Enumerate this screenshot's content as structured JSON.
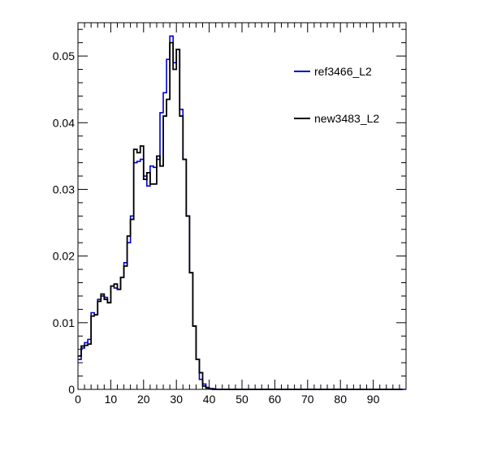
{
  "chart_data": {
    "type": "line",
    "xlim": [
      0,
      100
    ],
    "ylim": [
      0,
      0.055
    ],
    "x_ticks": [
      "0",
      "10",
      "20",
      "30",
      "40",
      "50",
      "60",
      "70",
      "80",
      "90"
    ],
    "y_ticks": [
      "0",
      "0.01",
      "0.02",
      "0.03",
      "0.04",
      "0.05"
    ],
    "x_tick_values": [
      0,
      10,
      20,
      30,
      40,
      50,
      60,
      70,
      80,
      90
    ],
    "y_tick_values": [
      0,
      0.01,
      0.02,
      0.03,
      0.04,
      0.05
    ],
    "bin_width": 1,
    "legend_position": "top-right",
    "series": [
      {
        "name": "ref3466_L2",
        "color": "#0000cc",
        "values": [
          0.0045,
          0.0062,
          0.007,
          0.0075,
          0.0115,
          0.0112,
          0.0135,
          0.014,
          0.0138,
          0.013,
          0.0155,
          0.0152,
          0.015,
          0.0168,
          0.019,
          0.022,
          0.026,
          0.034,
          0.0342,
          0.0345,
          0.032,
          0.0305,
          0.0335,
          0.0333,
          0.0345,
          0.0415,
          0.0445,
          0.0495,
          0.053,
          0.049,
          0.051,
          0.042,
          0.0345,
          0.026,
          0.0175,
          0.0095,
          0.0045,
          0.0015,
          0.0008,
          0.0003,
          0.0001,
          0.0001,
          0,
          0,
          0,
          0,
          0,
          0,
          0,
          0,
          0,
          0,
          0,
          0,
          0,
          0,
          0,
          0,
          0,
          0,
          0,
          0,
          0,
          0,
          0,
          0,
          0,
          0,
          0,
          0,
          0,
          0,
          0,
          0,
          0,
          0,
          0,
          0,
          0,
          0,
          0,
          0,
          0,
          0,
          0,
          0,
          0,
          0,
          0,
          0,
          0,
          0,
          0,
          0,
          0,
          0,
          0,
          0,
          0,
          0
        ]
      },
      {
        "name": "new3483_L2",
        "color": "#000000",
        "values": [
          0.005,
          0.0065,
          0.0066,
          0.0068,
          0.011,
          0.0112,
          0.0132,
          0.0143,
          0.0135,
          0.013,
          0.0155,
          0.0158,
          0.015,
          0.0168,
          0.0185,
          0.023,
          0.0255,
          0.036,
          0.0355,
          0.0365,
          0.0315,
          0.0325,
          0.0308,
          0.0308,
          0.035,
          0.0335,
          0.041,
          0.0435,
          0.052,
          0.048,
          0.051,
          0.041,
          0.0345,
          0.026,
          0.0175,
          0.0095,
          0.0045,
          0.0025,
          0.0005,
          0.0002,
          0.0001,
          0,
          0,
          0,
          0,
          0,
          0,
          0,
          0,
          0,
          0,
          0,
          0,
          0,
          0,
          0,
          0,
          0,
          0,
          0,
          0,
          0,
          0,
          0,
          0,
          0,
          0,
          0,
          0,
          0,
          0,
          0,
          0,
          0,
          0,
          0,
          0,
          0,
          0,
          0,
          0,
          0,
          0,
          0,
          0,
          0,
          0,
          0,
          0,
          0,
          0,
          0,
          0,
          0,
          0,
          0,
          0,
          0,
          0
        ]
      }
    ]
  }
}
